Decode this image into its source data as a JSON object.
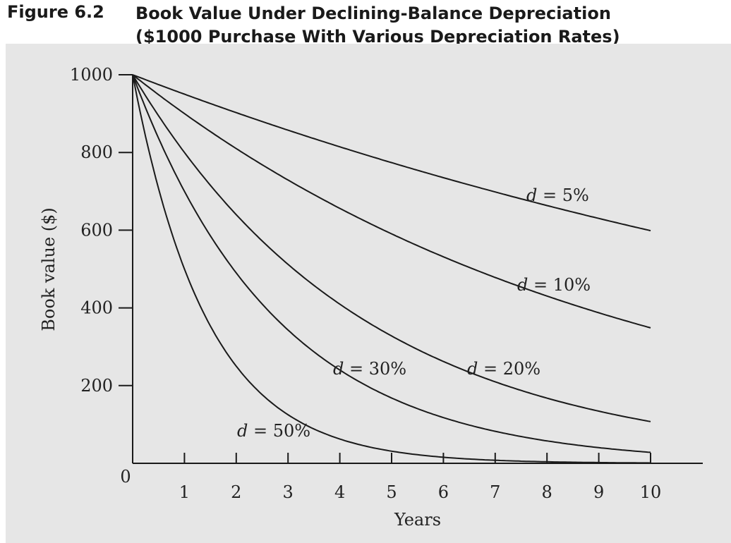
{
  "figure": {
    "label": "Figure 6.2",
    "title_line1": "Book Value Under Declining-Balance Depreciation",
    "title_line2": "($1000 Purchase With Various Depreciation Rates)"
  },
  "chart_data": {
    "type": "line",
    "title": "Book Value Under Declining-Balance Depreciation ($1000 Purchase With Various Depreciation Rates)",
    "xlabel": "Years",
    "ylabel": "Book value ($)",
    "xlim": [
      0,
      10
    ],
    "ylim": [
      0,
      1000
    ],
    "x_ticks": [
      1,
      2,
      3,
      4,
      5,
      6,
      7,
      8,
      9,
      10
    ],
    "y_ticks": [
      200,
      400,
      600,
      800,
      1000
    ],
    "origin_label": "0",
    "grid": false,
    "x": [
      0,
      1,
      2,
      3,
      4,
      5,
      6,
      7,
      8,
      9,
      10
    ],
    "series": [
      {
        "label_d": "d",
        "label_rate": "5%",
        "values": [
          1000,
          950,
          902.5,
          857.4,
          814.5,
          773.8,
          735.1,
          698.3,
          663.4,
          630.2,
          598.7
        ]
      },
      {
        "label_d": "d",
        "label_rate": "10%",
        "values": [
          1000,
          900,
          810,
          729,
          656.1,
          590.5,
          531.4,
          478.3,
          430.5,
          387.4,
          348.7
        ]
      },
      {
        "label_d": "d",
        "label_rate": "20%",
        "values": [
          1000,
          800,
          640,
          512,
          409.6,
          327.7,
          262.1,
          209.7,
          167.8,
          134.2,
          107.4
        ]
      },
      {
        "label_d": "d",
        "label_rate": "30%",
        "values": [
          1000,
          700,
          490,
          343,
          240.1,
          168.1,
          117.6,
          82.4,
          57.6,
          40.4,
          28.2
        ]
      },
      {
        "label_d": "d",
        "label_rate": "50%",
        "values": [
          1000,
          500,
          250,
          125,
          62.5,
          31.3,
          15.6,
          7.8,
          3.9,
          2.0,
          1.0
        ]
      }
    ]
  }
}
